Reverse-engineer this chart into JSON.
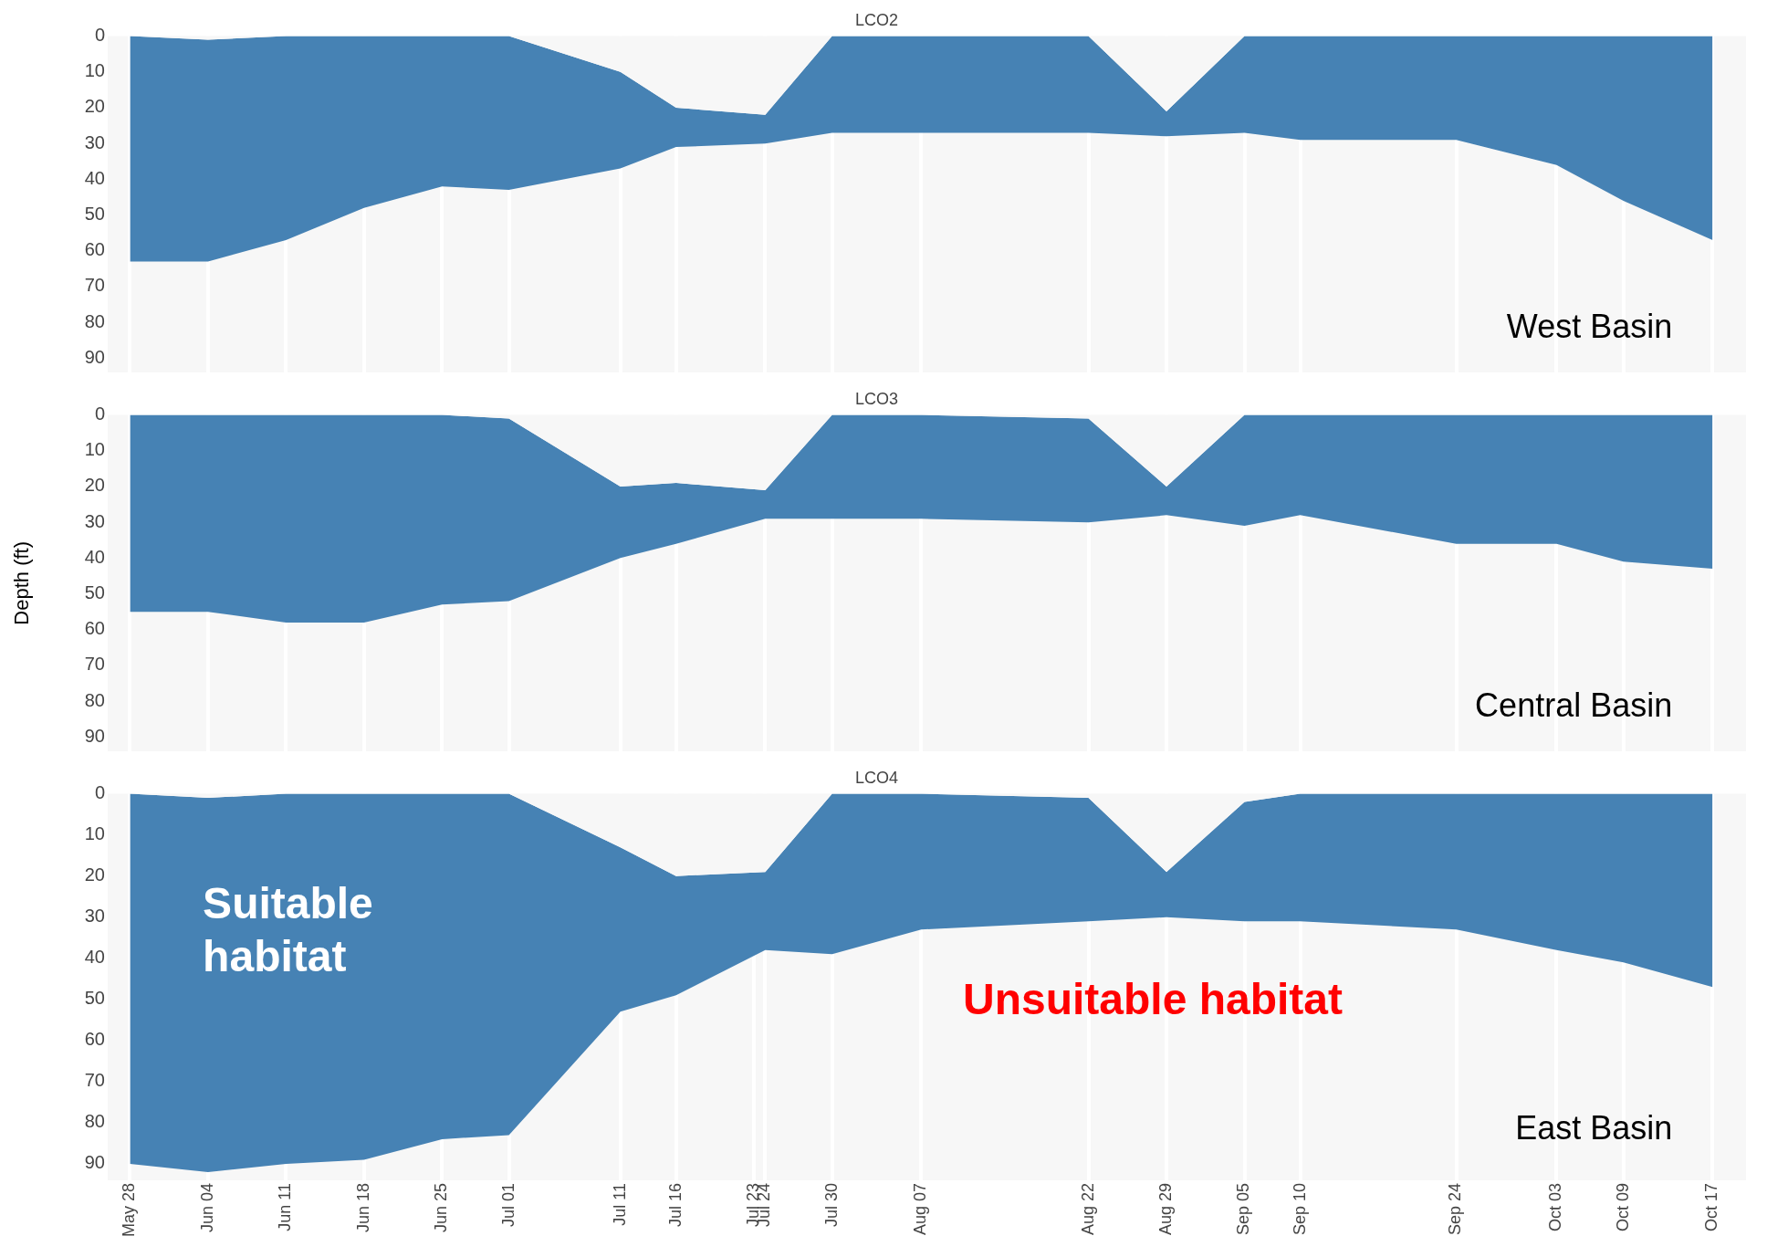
{
  "chart_data": [
    {
      "type": "area",
      "title": "LCO2",
      "stacked": true,
      "grid": "x",
      "legend": false,
      "tick_labels": "y",
      "ylim": [
        94,
        0
      ],
      "yticks": [
        0,
        10,
        20,
        30,
        40,
        50,
        60,
        70,
        80,
        90
      ],
      "xlim": [
        "--05-26",
        "--10-20"
      ],
      "xticks": [
        {
          "value": "--05-28",
          "label": null
        },
        {
          "value": "--06-04",
          "label": null
        },
        {
          "value": "--06-11",
          "label": null
        },
        {
          "value": "--06-18",
          "label": null
        },
        {
          "value": "--06-25",
          "label": null
        },
        {
          "value": "--07-01",
          "label": null
        },
        {
          "value": "--07-11",
          "label": null
        },
        {
          "value": "--07-16",
          "label": null
        },
        {
          "value": "--07-24",
          "label": null
        },
        {
          "value": "--07-30",
          "label": null
        },
        {
          "value": "--08-07",
          "label": null
        },
        {
          "value": "--08-22",
          "label": null
        },
        {
          "value": "--08-29",
          "label": null
        },
        {
          "value": "--09-05",
          "label": null
        },
        {
          "value": "--09-10",
          "label": null
        },
        {
          "value": "--09-24",
          "label": null
        },
        {
          "value": "--10-03",
          "label": null
        },
        {
          "value": "--10-09",
          "label": null
        },
        {
          "value": "--10-17",
          "label": null
        }
      ],
      "x": [
        "--05-28",
        "--06-04",
        "--06-11",
        "--06-18",
        "--06-25",
        "--07-01",
        "--07-11",
        "--07-16",
        "--07-24",
        "--07-30",
        "--08-07",
        "--08-22",
        "--08-29",
        "--09-05",
        "--09-10",
        "--09-24",
        "--10-03",
        "--10-09",
        "--10-17"
      ],
      "series": [
        {
          "color": "#f7f7f7",
          "values": [
            0,
            1,
            0,
            0,
            0,
            0,
            10,
            20,
            22,
            0,
            0,
            0,
            21,
            0,
            0,
            0,
            0,
            0,
            0
          ]
        },
        {
          "color": "#4682b4",
          "values": [
            63,
            62,
            57,
            48,
            42,
            43,
            27,
            11,
            8,
            27,
            27,
            27,
            7,
            27,
            29,
            29,
            36,
            46,
            57
          ]
        }
      ],
      "annotations": [
        "West Basin"
      ]
    },
    {
      "type": "area",
      "title": "LCO3",
      "ylabel": "Depth (ft)",
      "stacked": true,
      "grid": "x",
      "legend": false,
      "tick_labels": "y",
      "ylim": [
        94,
        0
      ],
      "yticks": [
        0,
        10,
        20,
        30,
        40,
        50,
        60,
        70,
        80,
        90
      ],
      "xlim": [
        "--05-26",
        "--10-20"
      ],
      "xticks": [
        {
          "value": "--05-28",
          "label": null
        },
        {
          "value": "--06-04",
          "label": null
        },
        {
          "value": "--06-11",
          "label": null
        },
        {
          "value": "--06-18",
          "label": null
        },
        {
          "value": "--06-25",
          "label": null
        },
        {
          "value": "--07-01",
          "label": null
        },
        {
          "value": "--07-11",
          "label": null
        },
        {
          "value": "--07-16",
          "label": null
        },
        {
          "value": "--07-24",
          "label": null
        },
        {
          "value": "--07-30",
          "label": null
        },
        {
          "value": "--08-07",
          "label": null
        },
        {
          "value": "--08-22",
          "label": null
        },
        {
          "value": "--08-29",
          "label": null
        },
        {
          "value": "--09-05",
          "label": null
        },
        {
          "value": "--09-10",
          "label": null
        },
        {
          "value": "--09-24",
          "label": null
        },
        {
          "value": "--10-03",
          "label": null
        },
        {
          "value": "--10-09",
          "label": null
        },
        {
          "value": "--10-17",
          "label": null
        }
      ],
      "x": [
        "--05-28",
        "--06-04",
        "--06-11",
        "--06-18",
        "--06-25",
        "--07-01",
        "--07-11",
        "--07-16",
        "--07-24",
        "--07-30",
        "--08-07",
        "--08-22",
        "--08-29",
        "--09-05",
        "--09-10",
        "--09-24",
        "--10-03",
        "--10-09",
        "--10-17"
      ],
      "series": [
        {
          "color": "#f7f7f7",
          "values": [
            0,
            0,
            0,
            0,
            0,
            1,
            20,
            19,
            21,
            0,
            0,
            1,
            20,
            0,
            0,
            0,
            0,
            0,
            0
          ]
        },
        {
          "color": "#4682b4",
          "values": [
            55,
            55,
            58,
            58,
            53,
            51,
            20,
            17,
            8,
            29,
            29,
            29,
            8,
            31,
            28,
            36,
            36,
            41,
            43
          ]
        }
      ],
      "annotations": [
        "Central Basin"
      ]
    },
    {
      "type": "area",
      "title": "LCO4",
      "stacked": true,
      "grid": "x",
      "legend": false,
      "ylim": [
        94,
        0
      ],
      "yticks": [
        0,
        10,
        20,
        30,
        40,
        50,
        60,
        70,
        80,
        90
      ],
      "xlim": [
        "--05-26",
        "--10-20"
      ],
      "xticks": [
        {
          "value": "--05-28",
          "label": "May 28"
        },
        {
          "value": "--06-04",
          "label": "Jun 04"
        },
        {
          "value": "--06-11",
          "label": "Jun 11"
        },
        {
          "value": "--06-18",
          "label": "Jun 18"
        },
        {
          "value": "--06-25",
          "label": "Jun 25"
        },
        {
          "value": "--07-01",
          "label": "Jul 01"
        },
        {
          "value": "--07-11",
          "label": "Jul 11"
        },
        {
          "value": "--07-16",
          "label": "Jul 16"
        },
        {
          "value": "--07-23",
          "label": "Jul 23"
        },
        {
          "value": "--07-24",
          "label": "Jul 24"
        },
        {
          "value": "--07-30",
          "label": "Jul 30"
        },
        {
          "value": "--08-07",
          "label": "Aug 07"
        },
        {
          "value": "--08-22",
          "label": "Aug 22"
        },
        {
          "value": "--08-29",
          "label": "Aug 29"
        },
        {
          "value": "--09-05",
          "label": "Sep 05"
        },
        {
          "value": "--09-10",
          "label": "Sep 10"
        },
        {
          "value": "--09-24",
          "label": "Sep 24"
        },
        {
          "value": "--10-03",
          "label": "Oct 03"
        },
        {
          "value": "--10-09",
          "label": "Oct 09"
        },
        {
          "value": "--10-17",
          "label": "Oct 17"
        }
      ],
      "x": [
        "--05-28",
        "--06-04",
        "--06-11",
        "--06-18",
        "--06-25",
        "--07-01",
        "--07-11",
        "--07-16",
        "--07-24",
        "--07-30",
        "--08-07",
        "--08-22",
        "--08-29",
        "--09-05",
        "--09-10",
        "--09-24",
        "--10-03",
        "--10-09",
        "--10-17"
      ],
      "series": [
        {
          "color": "#f7f7f7",
          "values": [
            0,
            1,
            0,
            0,
            0,
            0,
            13,
            20,
            19,
            0,
            0,
            1,
            19,
            2,
            0,
            0,
            0,
            0,
            0
          ]
        },
        {
          "color": "#4682b4",
          "values": [
            90,
            91,
            90,
            89,
            84,
            83,
            40,
            29,
            19,
            39,
            33,
            30,
            11,
            29,
            31,
            33,
            38,
            41,
            47
          ]
        }
      ],
      "annotations": [
        "East Basin",
        "Suitable\nhabitat",
        "Unsuitable habitat"
      ]
    }
  ]
}
